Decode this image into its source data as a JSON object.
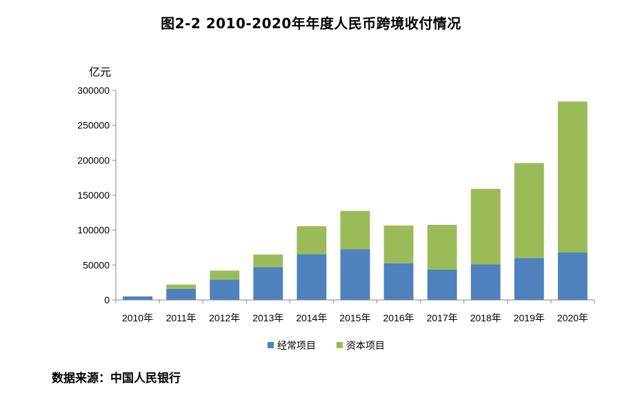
{
  "chart_data": {
    "type": "bar",
    "stacked": true,
    "title": "图2-2 2010-2020年年度人民币跨境收付情况",
    "ylabel": "亿元",
    "ylim": [
      0,
      300000
    ],
    "yticks": [
      "0",
      "50000",
      "100000",
      "150000",
      "200000",
      "250000",
      "300000"
    ],
    "categories": [
      "2010年",
      "2011年",
      "2012年",
      "2013年",
      "2014年",
      "2015年",
      "2016年",
      "2017年",
      "2018年",
      "2019年",
      "2020年"
    ],
    "series": [
      {
        "name": "经常项目",
        "color": "#4f81bd",
        "values": [
          5000,
          16000,
          29000,
          47000,
          65500,
          72500,
          52500,
          43500,
          51000,
          60000,
          68000
        ]
      },
      {
        "name": "资本项目",
        "color": "#9bbb59",
        "values": [
          0,
          6000,
          13000,
          18000,
          40000,
          55000,
          54000,
          64000,
          108000,
          136000,
          216000
        ]
      }
    ],
    "legend_position": "bottom",
    "grid": false
  },
  "source_text": "数据来源：中国人民银行"
}
